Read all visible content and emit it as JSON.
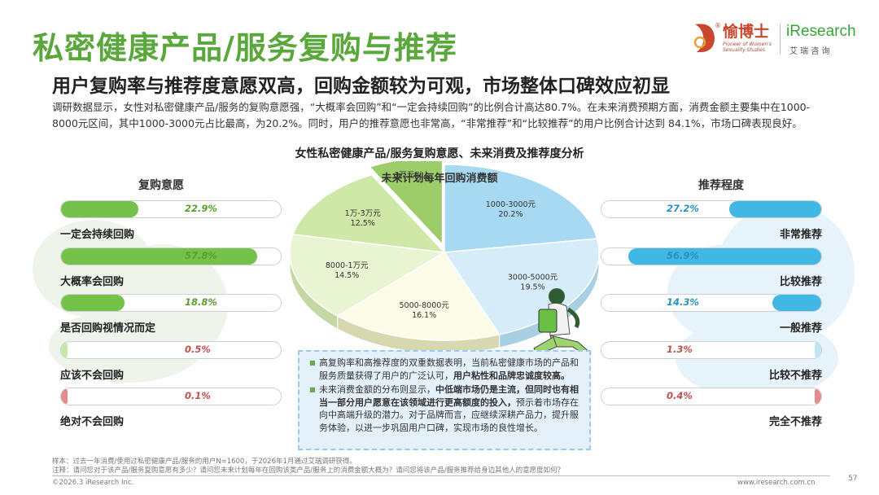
{
  "header": {
    "title": "私密健康产品/服务复购与推荐",
    "subtitle": "用户复购率与推荐度意愿双高，回购金额较为可观，市场整体口碑效应初显",
    "intro": "调研数据显示，女性对私密健康产品/服务的复购意愿强，“大概率会回购”和“一定会持续回购”的比例合计高达80.7%。在未来消费预期方面，消费金额主要集中在1000-8000元区间，其中1000-3000元占比最高，为20.2%。同时，用户的推荐意愿也非常高，“非常推荐”和“比较推荐”的用户比例合计达到 84.1%，市场口碑表现良好。"
  },
  "logos": {
    "brand_name": "愉博士",
    "brand_tagline": "Pioneer of Women's Sexuality Studies",
    "partner_name": "iResearch",
    "partner_cn": "艾 瑞 咨 询"
  },
  "colors": {
    "title_green": "#5aa83c",
    "repurchase_fill": "#74c24a",
    "recommend_fill": "#41b8e4",
    "negative_fill": "#e88a8a"
  },
  "chart_data": {
    "title": "女性私密健康产品/服务复购意愿、未来消费及推荐度分析",
    "charts": [
      {
        "type": "bar",
        "title": "复购意愿",
        "categories": [
          "一定会持续回购",
          "大概率会回购",
          "是否回购视情况而定",
          "应该不会回购",
          "绝对不会回购"
        ],
        "values": [
          22.9,
          57.8,
          18.8,
          0.5,
          0.1
        ],
        "value_labels": [
          "22.9%",
          "57.8%",
          "18.8%",
          "0.5%",
          "0.1%"
        ],
        "unit": "%",
        "ylim": [
          0,
          100
        ]
      },
      {
        "type": "pie",
        "title": "未来计划每年回购消费额",
        "categories": [
          "1000-3000元",
          "3000-5000元",
          "5000-8000元",
          "8000-1万元",
          "1万-3万元",
          "3万元以上"
        ],
        "values": [
          20.2,
          19.5,
          16.1,
          14.5,
          12.5,
          7.0
        ],
        "value_labels": [
          "20.2%",
          "19.5%",
          "16.1%",
          "14.5%",
          "12.5%",
          ""
        ]
      },
      {
        "type": "bar",
        "title": "推荐程度",
        "categories": [
          "非常推荐",
          "比较推荐",
          "一般推荐",
          "比较不推荐",
          "完全不推荐"
        ],
        "values": [
          27.2,
          56.9,
          14.3,
          1.3,
          0.4
        ],
        "value_labels": [
          "27.2%",
          "56.9%",
          "14.3%",
          "1.3%",
          "0.4%"
        ],
        "unit": "%",
        "ylim": [
          0,
          100
        ]
      }
    ]
  },
  "note": {
    "p1_a": "高复购率和高推荐度的双重数据表明，当前私密健康市场的产品和服务质量获得了用户的广泛认可，",
    "p1_b": "用户粘性和品牌忠诚度较高。",
    "p2_a": "未来消费金额的分布则显示，",
    "p2_b": "中低端市场仍是主流，但同时也有相当一部分用户愿意在该领域进行更高额度的投入，",
    "p2_c": "预示着市场存在向中高端升级的潜力。对于品牌而言，应继续深耕产品力，提升服务体验，以进一步巩固用户口碑，实现市场的良性增长。"
  },
  "footer": {
    "sample": "样本：过去一年消费/使用过私密健康产品/服务的用户N=1600，于2026年1月通过艾瑞调研获得。",
    "notes": "注释：请问您对于该产品/服务复购意愿有多少？请问您未来计划每年在回购该类产品/服务上的消费金额大概为？请问您将该产品/服务推荐给身边其他人的意愿度如何？",
    "copyright": "©2026.3 iResearch Inc.",
    "website": "www.iresearch.com.cn",
    "page_number": "57"
  }
}
